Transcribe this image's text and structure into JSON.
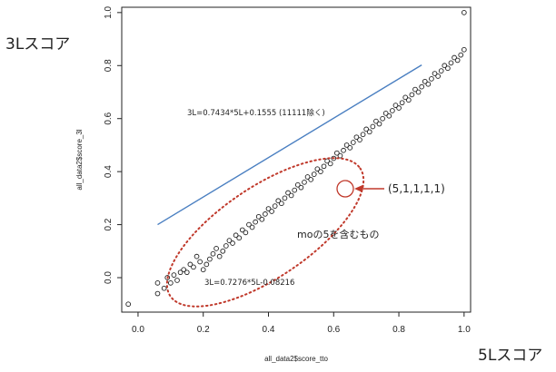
{
  "chart_data": {
    "type": "scatter",
    "xlabel": "all_data2$score_tto",
    "ylabel": "all_data2$score_3l",
    "xlim": [
      -0.05,
      1.02
    ],
    "ylim": [
      -0.13,
      1.02
    ],
    "xticks": [
      "0.0",
      "0.2",
      "0.4",
      "0.6",
      "0.8",
      "1.0"
    ],
    "yticks": [
      "0.0",
      "0.2",
      "0.4",
      "0.6",
      "0.8",
      "1.0"
    ],
    "axis_caption_y": "3Lスコア",
    "axis_caption_x": "5Lスコア",
    "regression": {
      "equation": "3L=0.7434*5L+0.1555 (11111除く)",
      "slope": 0.7434,
      "intercept": 0.1555,
      "x_range": [
        0.06,
        0.87
      ],
      "color": "#4a7fc1"
    },
    "annotations": {
      "lower_equation": "3L=0.7276*5L-0.08216",
      "group_label": "moの5を含むもの",
      "point_label": "(5,1,1,1,1)",
      "highlight_color": "#c0392b"
    },
    "points": [
      [
        -0.03,
        -0.1
      ],
      [
        1.0,
        1.0
      ],
      [
        0.06,
        -0.06
      ],
      [
        0.06,
        -0.02
      ],
      [
        0.08,
        -0.04
      ],
      [
        0.09,
        0.0
      ],
      [
        0.1,
        -0.02
      ],
      [
        0.11,
        0.01
      ],
      [
        0.12,
        -0.01
      ],
      [
        0.13,
        0.02
      ],
      [
        0.14,
        0.03
      ],
      [
        0.15,
        0.02
      ],
      [
        0.16,
        0.05
      ],
      [
        0.17,
        0.04
      ],
      [
        0.18,
        0.08
      ],
      [
        0.19,
        0.06
      ],
      [
        0.2,
        0.03
      ],
      [
        0.21,
        0.05
      ],
      [
        0.22,
        0.07
      ],
      [
        0.23,
        0.09
      ],
      [
        0.24,
        0.11
      ],
      [
        0.25,
        0.08
      ],
      [
        0.26,
        0.1
      ],
      [
        0.27,
        0.12
      ],
      [
        0.28,
        0.14
      ],
      [
        0.29,
        0.13
      ],
      [
        0.3,
        0.16
      ],
      [
        0.31,
        0.15
      ],
      [
        0.32,
        0.18
      ],
      [
        0.33,
        0.17
      ],
      [
        0.34,
        0.2
      ],
      [
        0.35,
        0.19
      ],
      [
        0.36,
        0.21
      ],
      [
        0.37,
        0.23
      ],
      [
        0.38,
        0.22
      ],
      [
        0.39,
        0.24
      ],
      [
        0.4,
        0.26
      ],
      [
        0.41,
        0.25
      ],
      [
        0.42,
        0.27
      ],
      [
        0.43,
        0.29
      ],
      [
        0.44,
        0.28
      ],
      [
        0.45,
        0.3
      ],
      [
        0.46,
        0.32
      ],
      [
        0.47,
        0.31
      ],
      [
        0.48,
        0.33
      ],
      [
        0.49,
        0.35
      ],
      [
        0.5,
        0.34
      ],
      [
        0.51,
        0.36
      ],
      [
        0.52,
        0.38
      ],
      [
        0.53,
        0.37
      ],
      [
        0.54,
        0.39
      ],
      [
        0.55,
        0.41
      ],
      [
        0.56,
        0.4
      ],
      [
        0.57,
        0.42
      ],
      [
        0.58,
        0.44
      ],
      [
        0.59,
        0.43
      ],
      [
        0.6,
        0.45
      ],
      [
        0.61,
        0.47
      ],
      [
        0.62,
        0.46
      ],
      [
        0.63,
        0.48
      ],
      [
        0.64,
        0.5
      ],
      [
        0.65,
        0.49
      ],
      [
        0.66,
        0.51
      ],
      [
        0.67,
        0.53
      ],
      [
        0.68,
        0.52
      ],
      [
        0.69,
        0.54
      ],
      [
        0.7,
        0.56
      ],
      [
        0.71,
        0.55
      ],
      [
        0.72,
        0.57
      ],
      [
        0.73,
        0.59
      ],
      [
        0.74,
        0.58
      ],
      [
        0.75,
        0.6
      ],
      [
        0.76,
        0.62
      ],
      [
        0.77,
        0.61
      ],
      [
        0.78,
        0.63
      ],
      [
        0.79,
        0.65
      ],
      [
        0.8,
        0.64
      ],
      [
        0.81,
        0.66
      ],
      [
        0.82,
        0.68
      ],
      [
        0.83,
        0.67
      ],
      [
        0.84,
        0.69
      ],
      [
        0.85,
        0.71
      ],
      [
        0.86,
        0.7
      ],
      [
        0.87,
        0.72
      ],
      [
        0.88,
        0.74
      ],
      [
        0.89,
        0.73
      ],
      [
        0.9,
        0.75
      ],
      [
        0.91,
        0.77
      ],
      [
        0.92,
        0.76
      ],
      [
        0.93,
        0.78
      ],
      [
        0.94,
        0.8
      ],
      [
        0.95,
        0.79
      ],
      [
        0.96,
        0.81
      ],
      [
        0.97,
        0.83
      ],
      [
        0.98,
        0.82
      ],
      [
        0.99,
        0.84
      ],
      [
        1.0,
        0.86
      ]
    ]
  }
}
